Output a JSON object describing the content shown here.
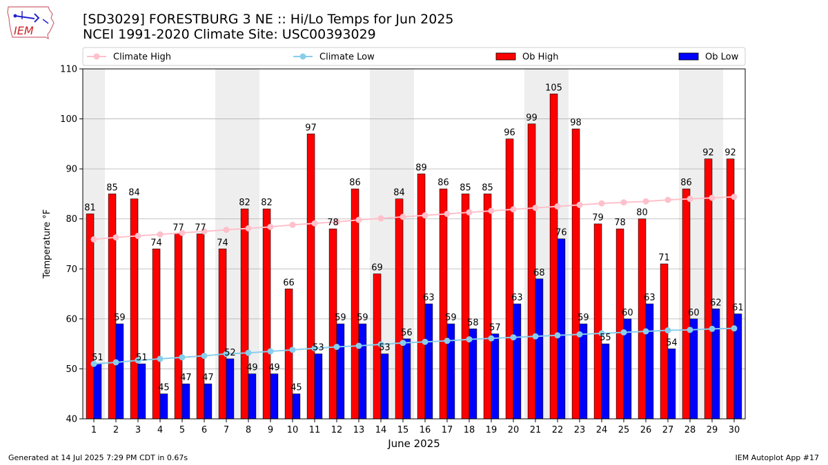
{
  "header": {
    "title_line1": "[SD3029] FORESTBURG 3 NE :: Hi/Lo Temps for Jun 2025",
    "title_line2": "NCEI 1991-2020 Climate Site: USC00393029",
    "logo_text": "IEM"
  },
  "footer": {
    "generated": "Generated at 14 Jul 2025 7:29 PM CDT in 0.67s",
    "app": "IEM Autoplot App #17"
  },
  "colors": {
    "ob_high": "#ff0000",
    "ob_low": "#0000ff",
    "climate_high": "#ffc0cb",
    "climate_low": "#87ceeb",
    "weekend_band": "#eeeeee",
    "grid": "#b0b0b0"
  },
  "chart_data": {
    "type": "bar",
    "xlabel": "June 2025",
    "ylabel": "Temperature °F",
    "ylim": [
      40,
      110
    ],
    "yticks": [
      40,
      50,
      60,
      70,
      80,
      90,
      100,
      110
    ],
    "grid": true,
    "legend_position": "top",
    "categories": [
      "1",
      "2",
      "3",
      "4",
      "5",
      "6",
      "7",
      "8",
      "9",
      "10",
      "11",
      "12",
      "13",
      "14",
      "15",
      "16",
      "17",
      "18",
      "19",
      "20",
      "21",
      "22",
      "23",
      "24",
      "25",
      "26",
      "27",
      "28",
      "29",
      "30"
    ],
    "shaded_days": [
      1,
      7,
      8,
      14,
      15,
      21,
      22,
      28,
      29
    ],
    "series": [
      {
        "name": "Climate High",
        "kind": "line",
        "values": [
          75.9,
          76.3,
          76.6,
          76.9,
          77.2,
          77.5,
          77.8,
          78.1,
          78.4,
          78.8,
          79.1,
          79.4,
          79.8,
          80.1,
          80.4,
          80.7,
          81.0,
          81.3,
          81.6,
          81.9,
          82.2,
          82.5,
          82.8,
          83.1,
          83.3,
          83.5,
          83.8,
          84.0,
          84.2,
          84.4
        ]
      },
      {
        "name": "Climate Low",
        "kind": "line",
        "values": [
          51.0,
          51.3,
          51.7,
          52.0,
          52.3,
          52.6,
          53.0,
          53.2,
          53.5,
          53.8,
          54.1,
          54.4,
          54.6,
          54.9,
          55.2,
          55.4,
          55.6,
          55.9,
          56.1,
          56.3,
          56.5,
          56.7,
          56.9,
          57.1,
          57.3,
          57.5,
          57.7,
          57.8,
          58.0,
          58.1
        ]
      },
      {
        "name": "Ob High",
        "kind": "bar",
        "values": [
          81,
          85,
          84,
          74,
          77,
          77,
          74,
          82,
          82,
          66,
          97,
          78,
          86,
          69,
          84,
          89,
          86,
          85,
          85,
          96,
          99,
          105,
          98,
          79,
          78,
          80,
          71,
          86,
          92,
          92
        ]
      },
      {
        "name": "Ob Low",
        "kind": "bar",
        "values": [
          51,
          59,
          51,
          45,
          47,
          47,
          52,
          49,
          49,
          45,
          53,
          59,
          59,
          53,
          56,
          63,
          59,
          58,
          57,
          63,
          68,
          76,
          59,
          55,
          60,
          63,
          54,
          60,
          62,
          61
        ]
      }
    ]
  }
}
